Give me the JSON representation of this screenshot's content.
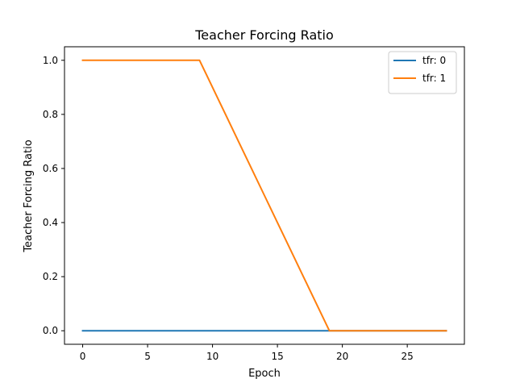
{
  "chart_data": {
    "type": "line",
    "title": "Teacher Forcing Ratio",
    "xlabel": "Epoch",
    "ylabel": "Teacher Forcing Ratio",
    "xlim": [
      -1.4,
      29.4
    ],
    "ylim": [
      -0.05,
      1.05
    ],
    "xticks": [
      0,
      5,
      10,
      15,
      20,
      25
    ],
    "xtick_labels": [
      "0",
      "5",
      "10",
      "15",
      "20",
      "25"
    ],
    "yticks": [
      0.0,
      0.2,
      0.4,
      0.6,
      0.8,
      1.0
    ],
    "ytick_labels": [
      "0.0",
      "0.2",
      "0.4",
      "0.6",
      "0.8",
      "1.0"
    ],
    "grid": false,
    "legend_position": "top-right",
    "series": [
      {
        "name": "tfr: 0",
        "color": "#1f77b4",
        "x": [
          0,
          1,
          2,
          3,
          4,
          5,
          6,
          7,
          8,
          9,
          10,
          11,
          12,
          13,
          14,
          15,
          16,
          17,
          18,
          19,
          20,
          21,
          22,
          23,
          24,
          25,
          26,
          27,
          28
        ],
        "y": [
          0,
          0,
          0,
          0,
          0,
          0,
          0,
          0,
          0,
          0,
          0,
          0,
          0,
          0,
          0,
          0,
          0,
          0,
          0,
          0,
          0,
          0,
          0,
          0,
          0,
          0,
          0,
          0,
          0
        ]
      },
      {
        "name": "tfr: 1",
        "color": "#ff7f0e",
        "x": [
          0,
          1,
          2,
          3,
          4,
          5,
          6,
          7,
          8,
          9,
          10,
          11,
          12,
          13,
          14,
          15,
          16,
          17,
          18,
          19,
          20,
          21,
          22,
          23,
          24,
          25,
          26,
          27,
          28
        ],
        "y": [
          1.0,
          1.0,
          1.0,
          1.0,
          1.0,
          1.0,
          1.0,
          1.0,
          1.0,
          1.0,
          0.9,
          0.8,
          0.7,
          0.6,
          0.5,
          0.4,
          0.3,
          0.2,
          0.1,
          0.0,
          0.0,
          0.0,
          0.0,
          0.0,
          0.0,
          0.0,
          0.0,
          0.0,
          0.0
        ]
      }
    ]
  }
}
